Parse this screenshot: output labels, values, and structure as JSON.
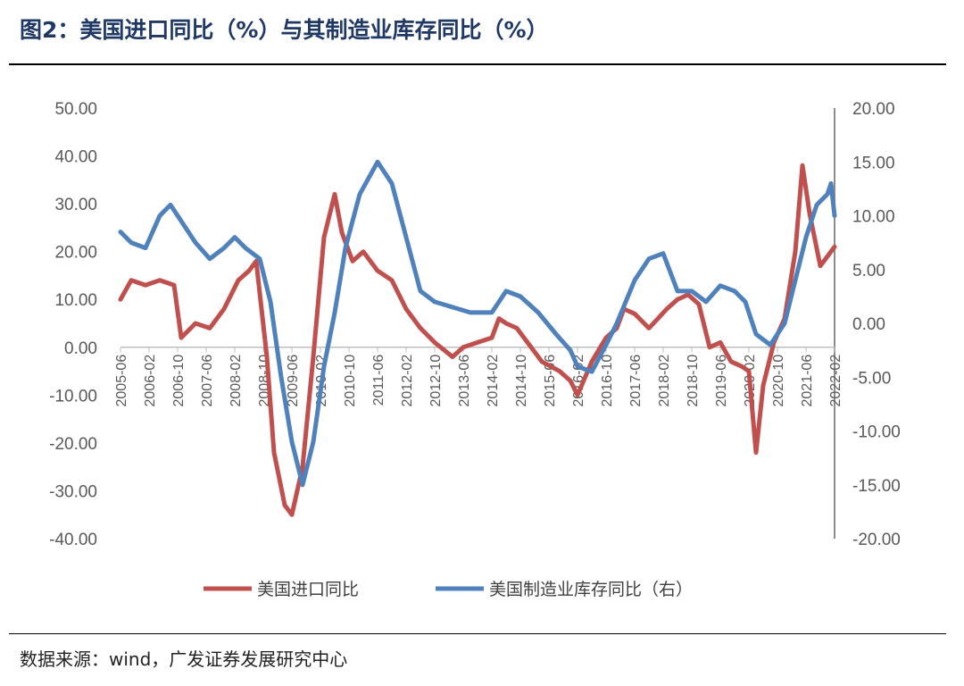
{
  "title": "图2：美国进口同比（%）与其制造业库存同比（%）",
  "source": "数据来源：wind，广发证券发展研究中心",
  "chart_data": {
    "type": "line",
    "x_ticks": [
      "2005-06",
      "2006-02",
      "2006-10",
      "2007-06",
      "2008-02",
      "2008-10",
      "2009-06",
      "2010-02",
      "2010-10",
      "2011-06",
      "2012-02",
      "2012-10",
      "2013-06",
      "2014-02",
      "2014-10",
      "2015-06",
      "2016-02",
      "2016-10",
      "2017-06",
      "2018-02",
      "2018-10",
      "2019-06",
      "2020-02",
      "2020-10",
      "2021-06",
      "2022-02"
    ],
    "y_left": {
      "ylim": [
        -40,
        50
      ],
      "ticks": [
        "50.00",
        "40.00",
        "30.00",
        "20.00",
        "10.00",
        "0.00",
        "-10.00",
        "-20.00",
        "-30.00",
        "-40.00"
      ]
    },
    "y_right": {
      "ylim": [
        -20,
        20
      ],
      "ticks": [
        "20.00",
        "15.00",
        "10.00",
        "5.00",
        "0.00",
        "-5.00",
        "-10.00",
        "-15.00",
        "-20.00"
      ]
    },
    "series": [
      {
        "name": "美国进口同比",
        "axis": "left",
        "color": "#c0504d",
        "points": [
          [
            "2005-06",
            10
          ],
          [
            "2005-09",
            14
          ],
          [
            "2006-01",
            13
          ],
          [
            "2006-05",
            14
          ],
          [
            "2006-09",
            13
          ],
          [
            "2006-11",
            2
          ],
          [
            "2007-03",
            5
          ],
          [
            "2007-07",
            4
          ],
          [
            "2007-11",
            8
          ],
          [
            "2008-03",
            14
          ],
          [
            "2008-06",
            16
          ],
          [
            "2008-08",
            18
          ],
          [
            "2008-11",
            -2
          ],
          [
            "2009-01",
            -22
          ],
          [
            "2009-04",
            -33
          ],
          [
            "2009-06",
            -35
          ],
          [
            "2009-09",
            -25
          ],
          [
            "2009-12",
            -2
          ],
          [
            "2010-03",
            23
          ],
          [
            "2010-06",
            32
          ],
          [
            "2010-08",
            24
          ],
          [
            "2010-11",
            18
          ],
          [
            "2011-02",
            20
          ],
          [
            "2011-06",
            16
          ],
          [
            "2011-10",
            14
          ],
          [
            "2012-02",
            8
          ],
          [
            "2012-06",
            4
          ],
          [
            "2012-10",
            1
          ],
          [
            "2013-03",
            -2
          ],
          [
            "2013-06",
            0
          ],
          [
            "2013-10",
            1
          ],
          [
            "2014-02",
            2
          ],
          [
            "2014-04",
            6
          ],
          [
            "2014-06",
            5
          ],
          [
            "2014-09",
            4
          ],
          [
            "2014-12",
            1
          ],
          [
            "2015-04",
            -3
          ],
          [
            "2015-09",
            -5
          ],
          [
            "2015-12",
            -7
          ],
          [
            "2016-02",
            -10
          ],
          [
            "2016-06",
            -3
          ],
          [
            "2016-10",
            2
          ],
          [
            "2017-01",
            4
          ],
          [
            "2017-03",
            8
          ],
          [
            "2017-06",
            7
          ],
          [
            "2017-10",
            4
          ],
          [
            "2018-03",
            8
          ],
          [
            "2018-06",
            10
          ],
          [
            "2018-09",
            11
          ],
          [
            "2018-12",
            9
          ],
          [
            "2019-03",
            0
          ],
          [
            "2019-06",
            1
          ],
          [
            "2019-09",
            -3
          ],
          [
            "2019-12",
            -4
          ],
          [
            "2020-02",
            -5
          ],
          [
            "2020-04",
            -22
          ],
          [
            "2020-06",
            -8
          ],
          [
            "2020-09",
            1
          ],
          [
            "2020-12",
            6
          ],
          [
            "2021-03",
            20
          ],
          [
            "2021-05",
            38
          ],
          [
            "2021-07",
            28
          ],
          [
            "2021-10",
            17
          ],
          [
            "2021-12",
            19
          ],
          [
            "2022-02",
            21
          ]
        ]
      },
      {
        "name": "美国制造业库存同比（右）",
        "axis": "right",
        "color": "#4f81bd",
        "points": [
          [
            "2005-06",
            8.5
          ],
          [
            "2005-09",
            7.5
          ],
          [
            "2006-01",
            7
          ],
          [
            "2006-05",
            10
          ],
          [
            "2006-08",
            11
          ],
          [
            "2006-11",
            9.5
          ],
          [
            "2007-03",
            7.5
          ],
          [
            "2007-07",
            6
          ],
          [
            "2007-11",
            7
          ],
          [
            "2008-02",
            8
          ],
          [
            "2008-05",
            7
          ],
          [
            "2008-09",
            6
          ],
          [
            "2008-12",
            2
          ],
          [
            "2009-03",
            -5
          ],
          [
            "2009-06",
            -11
          ],
          [
            "2009-09",
            -15
          ],
          [
            "2009-12",
            -11
          ],
          [
            "2010-03",
            -4
          ],
          [
            "2010-06",
            1
          ],
          [
            "2010-09",
            7
          ],
          [
            "2011-01",
            12
          ],
          [
            "2011-06",
            15
          ],
          [
            "2011-10",
            13
          ],
          [
            "2012-02",
            8
          ],
          [
            "2012-06",
            3
          ],
          [
            "2012-10",
            2
          ],
          [
            "2013-03",
            1.5
          ],
          [
            "2013-08",
            1
          ],
          [
            "2014-02",
            1
          ],
          [
            "2014-06",
            3
          ],
          [
            "2014-10",
            2.5
          ],
          [
            "2015-03",
            1
          ],
          [
            "2015-08",
            -1
          ],
          [
            "2015-12",
            -2.5
          ],
          [
            "2016-02",
            -4
          ],
          [
            "2016-06",
            -4.5
          ],
          [
            "2016-10",
            -2
          ],
          [
            "2017-01",
            0
          ],
          [
            "2017-06",
            4
          ],
          [
            "2017-10",
            6
          ],
          [
            "2018-02",
            6.5
          ],
          [
            "2018-06",
            3
          ],
          [
            "2018-10",
            3
          ],
          [
            "2019-02",
            2
          ],
          [
            "2019-06",
            3.5
          ],
          [
            "2019-10",
            3
          ],
          [
            "2020-01",
            2
          ],
          [
            "2020-04",
            -1
          ],
          [
            "2020-08",
            -2
          ],
          [
            "2020-12",
            0
          ],
          [
            "2021-03",
            4
          ],
          [
            "2021-06",
            8
          ],
          [
            "2021-09",
            11
          ],
          [
            "2021-12",
            12
          ],
          [
            "2022-01",
            13
          ],
          [
            "2022-02",
            10
          ]
        ]
      }
    ],
    "legend_position": "bottom",
    "grid": false
  }
}
